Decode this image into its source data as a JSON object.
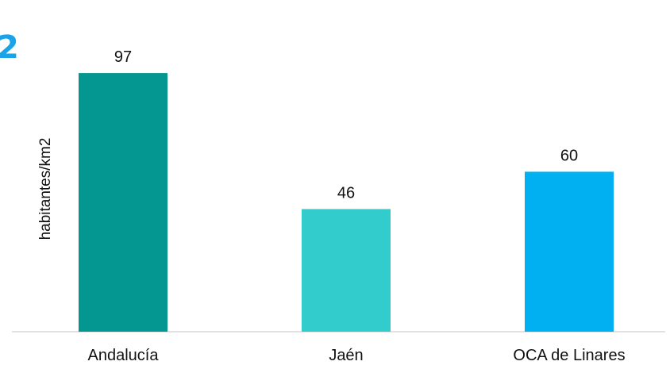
{
  "corner_number": "2",
  "chart_data": {
    "type": "bar",
    "categories": [
      "Andalucía",
      "Jaén",
      "OCA de Linares"
    ],
    "values": [
      97,
      46,
      60
    ],
    "colors": [
      "#049690",
      "#33cccc",
      "#00b0f0"
    ],
    "ylabel": "habitantes/km2",
    "ylim": [
      0,
      100
    ],
    "grid": false,
    "legend": "none"
  }
}
